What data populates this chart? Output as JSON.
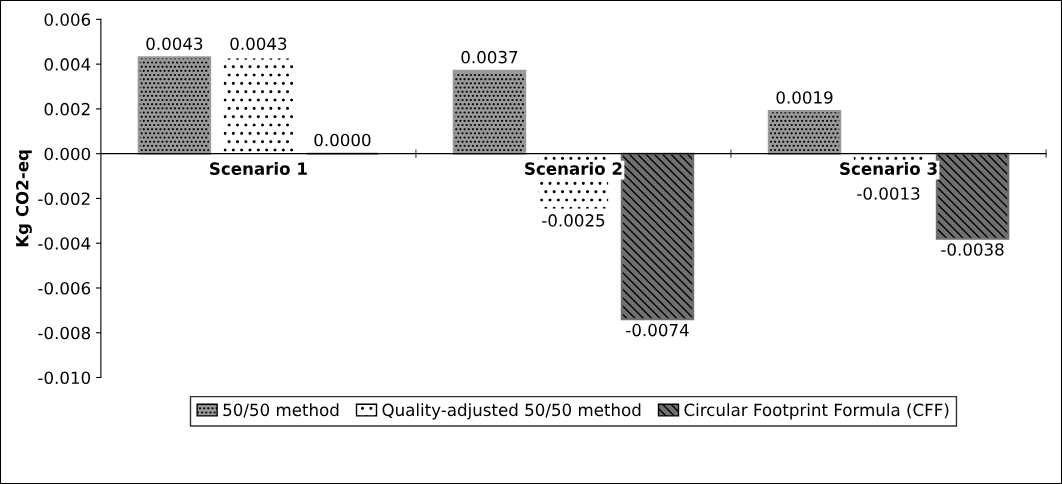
{
  "chart_data": {
    "type": "bar",
    "ylabel": "Kg CO2-eq",
    "categories": [
      "Scenario 1",
      "Scenario 2",
      "Scenario 3"
    ],
    "series": [
      {
        "name": "50/50 method",
        "color": "#9a9a9a",
        "values": [
          0.0043,
          0.0037,
          0.0019
        ],
        "value_labels": [
          "0.0043",
          "0.0037",
          "0.0019"
        ]
      },
      {
        "name": "Quality-adjusted 50/50 method",
        "color": "#ffffff",
        "values": [
          0.0043,
          -0.0025,
          -0.0013
        ],
        "value_labels": [
          "0.0043",
          "-0.0025",
          "-0.0013"
        ]
      },
      {
        "name": "Circular Footprint Formula (CFF)",
        "color": "#707070",
        "values": [
          0.0,
          -0.0074,
          -0.0038
        ],
        "value_labels": [
          "0.0000",
          "-0.0074",
          "-0.0038"
        ]
      }
    ],
    "ylim": [
      -0.01,
      0.006
    ],
    "yticks": [
      {
        "value": -0.01,
        "label": "-0.010"
      },
      {
        "value": -0.008,
        "label": "-0.008"
      },
      {
        "value": -0.006,
        "label": "-0.006"
      },
      {
        "value": -0.004,
        "label": "-0.004"
      },
      {
        "value": -0.002,
        "label": "-0.002"
      },
      {
        "value": 0,
        "label": "0.000"
      },
      {
        "value": 0.002,
        "label": "0.002"
      },
      {
        "value": 0.004,
        "label": "0.004"
      },
      {
        "value": 0.006,
        "label": "0.006"
      }
    ],
    "grid": false,
    "legend": "bottom"
  }
}
